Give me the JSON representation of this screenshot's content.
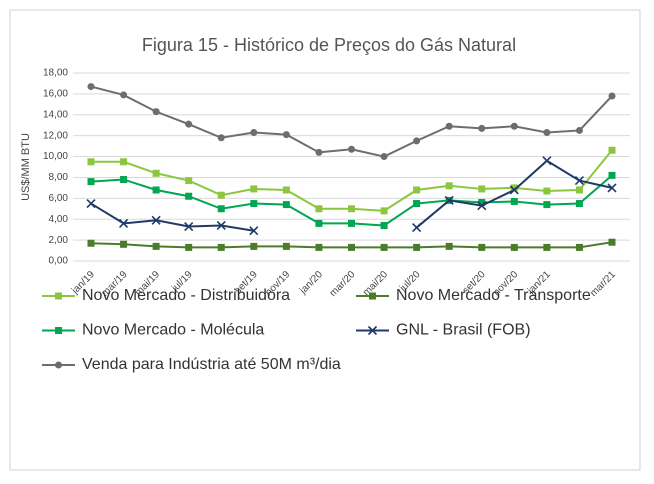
{
  "chart_data": {
    "type": "line",
    "title": "Figura 15 - Histórico de Preços do Gás Natural",
    "y_label": "US$/MM BTU",
    "categories": [
      "jan/19",
      "mar/19",
      "mai/19",
      "jul/19",
      null,
      "set/19",
      "nov/19",
      "jan/20",
      "mar/20",
      "mai/20",
      "jul/20",
      null,
      "set/20",
      "nov/20",
      "jan/21",
      null,
      "mar/21"
    ],
    "series": [
      {
        "name": "Novo Mercado - Distribuidora",
        "color": "#8cc63f",
        "marker": "square",
        "values": [
          9.5,
          9.5,
          8.4,
          7.7,
          6.3,
          6.9,
          6.8,
          5.0,
          5.0,
          4.8,
          6.8,
          7.2,
          6.9,
          7.0,
          6.7,
          6.8,
          10.6
        ]
      },
      {
        "name": "Novo Mercado - Transporte",
        "color": "#4a7c2a",
        "marker": "square",
        "values": [
          1.7,
          1.6,
          1.4,
          1.3,
          1.3,
          1.4,
          1.4,
          1.3,
          1.3,
          1.3,
          1.3,
          1.4,
          1.3,
          1.3,
          1.3,
          1.3,
          1.8
        ]
      },
      {
        "name": "Novo Mercado - Molécula",
        "color": "#00a651",
        "marker": "square",
        "values": [
          7.6,
          7.8,
          6.8,
          6.2,
          5.0,
          5.5,
          5.4,
          3.6,
          3.6,
          3.4,
          5.5,
          5.8,
          5.6,
          5.7,
          5.4,
          5.5,
          8.2
        ]
      },
      {
        "name": "GNL - Brasil (FOB)",
        "color": "#1f3a68",
        "marker": "x",
        "values": [
          5.5,
          3.6,
          3.9,
          3.3,
          3.4,
          2.9,
          null,
          null,
          null,
          null,
          3.2,
          5.8,
          5.3,
          6.8,
          9.6,
          7.7,
          7.0
        ]
      },
      {
        "name": "Venda para Indústria até 50M m³/dia",
        "color": "#6d6d6d",
        "marker": "circle",
        "values": [
          16.7,
          15.9,
          14.3,
          13.1,
          11.8,
          12.3,
          12.1,
          10.4,
          10.7,
          10.0,
          11.5,
          12.9,
          12.7,
          12.9,
          12.3,
          12.5,
          15.8
        ]
      }
    ],
    "ylim": [
      0,
      18
    ],
    "yticks": [
      {
        "value": 0,
        "label": "0,00"
      },
      {
        "value": 2,
        "label": "2,00"
      },
      {
        "value": 4,
        "label": "4,00"
      },
      {
        "value": 6,
        "label": "6,00"
      },
      {
        "value": 8,
        "label": "8,00"
      },
      {
        "value": 10,
        "label": "10,00"
      },
      {
        "value": 12,
        "label": "12,00"
      },
      {
        "value": 14,
        "label": "14,00"
      },
      {
        "value": 16,
        "label": "16,00"
      },
      {
        "value": 18,
        "label": "18,00"
      }
    ],
    "grid": true
  }
}
